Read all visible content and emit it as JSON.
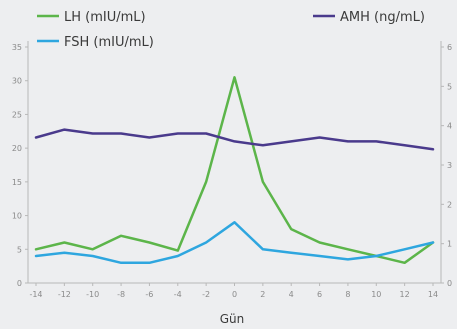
{
  "chart_data": {
    "type": "line",
    "title": "",
    "xlabel": "Gün",
    "x": [
      -14,
      -12,
      -10,
      -8,
      -6,
      -4,
      -2,
      0,
      2,
      4,
      6,
      8,
      10,
      12,
      14
    ],
    "x_ticks": [
      "-14",
      "-12",
      "-10",
      "-8",
      "-6",
      "-4",
      "-2",
      "0",
      "2",
      "4",
      "6",
      "8",
      "10",
      "12",
      "14"
    ],
    "ylim_left": [
      0,
      35
    ],
    "yticks_left": [
      "0",
      "5",
      "10",
      "15",
      "20",
      "25",
      "30",
      "35"
    ],
    "ylim_right": [
      0,
      6
    ],
    "yticks_right": [
      "0",
      "1",
      "2",
      "3",
      "4",
      "5",
      "6"
    ],
    "grid": false,
    "legend_position": "top",
    "series": [
      {
        "name": "LH (mIU/mL)",
        "axis": "left",
        "color": "#5cb54a",
        "values": [
          5,
          6,
          5,
          7,
          6,
          4.8,
          15,
          30.5,
          15,
          8,
          6,
          5,
          4,
          3,
          6
        ]
      },
      {
        "name": "FSH (mIU/mL)",
        "axis": "left",
        "color": "#2ea6df",
        "values": [
          4,
          4.5,
          4,
          3,
          3,
          4,
          6,
          9,
          5,
          4.5,
          4,
          3.5,
          4,
          5,
          6
        ]
      },
      {
        "name": "AMH (ng/mL)",
        "axis": "right",
        "color": "#4a3a8c",
        "values": [
          3.7,
          3.9,
          3.8,
          3.8,
          3.7,
          3.8,
          3.8,
          3.6,
          3.5,
          3.6,
          3.7,
          3.6,
          3.6,
          3.5,
          3.4
        ]
      }
    ]
  }
}
